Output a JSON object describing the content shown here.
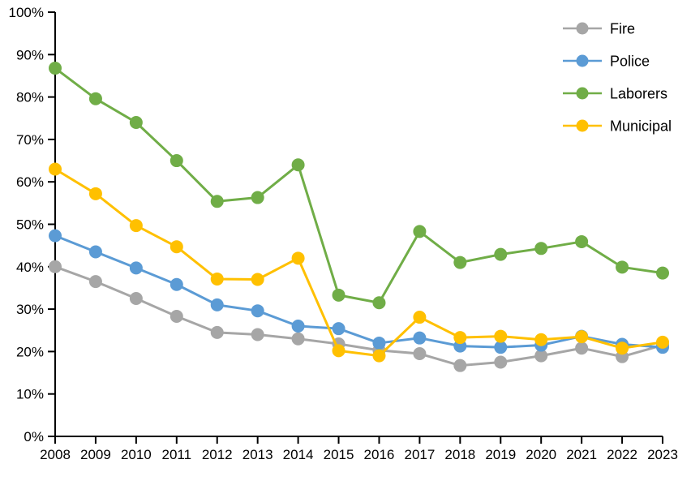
{
  "chart_data": {
    "type": "line",
    "title": "",
    "xlabel": "",
    "ylabel": "",
    "x_labels": [
      "2008",
      "2009",
      "2010",
      "2011",
      "2012",
      "2013",
      "2014",
      "2015",
      "2016",
      "2017",
      "2018",
      "2019",
      "2020",
      "2021",
      "2022",
      "2023"
    ],
    "series": [
      {
        "name": "Fire",
        "color": "#A6A6A6",
        "values": [
          40.0,
          36.5,
          32.5,
          28.3,
          24.5,
          24.0,
          23.0,
          21.8,
          20.3,
          19.5,
          16.7,
          17.5,
          19.0,
          20.8,
          18.8,
          21.5
        ]
      },
      {
        "name": "Police",
        "color": "#5B9BD5",
        "values": [
          47.3,
          43.5,
          39.7,
          35.8,
          31.0,
          29.6,
          26.0,
          25.4,
          22.0,
          23.2,
          21.3,
          21.0,
          21.5,
          23.6,
          21.7,
          21.0
        ]
      },
      {
        "name": "Laborers",
        "color": "#70AD47",
        "values": [
          86.8,
          79.6,
          74.0,
          65.0,
          55.4,
          56.3,
          64.0,
          33.3,
          31.5,
          48.3,
          41.0,
          42.9,
          44.3,
          45.9,
          39.9,
          38.5
        ]
      },
      {
        "name": "Municipal",
        "color": "#FFC000",
        "values": [
          63.0,
          57.2,
          49.7,
          44.7,
          37.1,
          37.0,
          42.0,
          20.2,
          19.0,
          28.1,
          23.3,
          23.6,
          22.8,
          23.5,
          20.8,
          22.2
        ]
      }
    ],
    "ylim": [
      0,
      100
    ],
    "ytick_step": 10,
    "ytick_suffix": "%",
    "grid": false,
    "legend_position": "top-right",
    "axis_color": "#000000",
    "text_color": "#000000",
    "background": "#FFFFFF"
  }
}
